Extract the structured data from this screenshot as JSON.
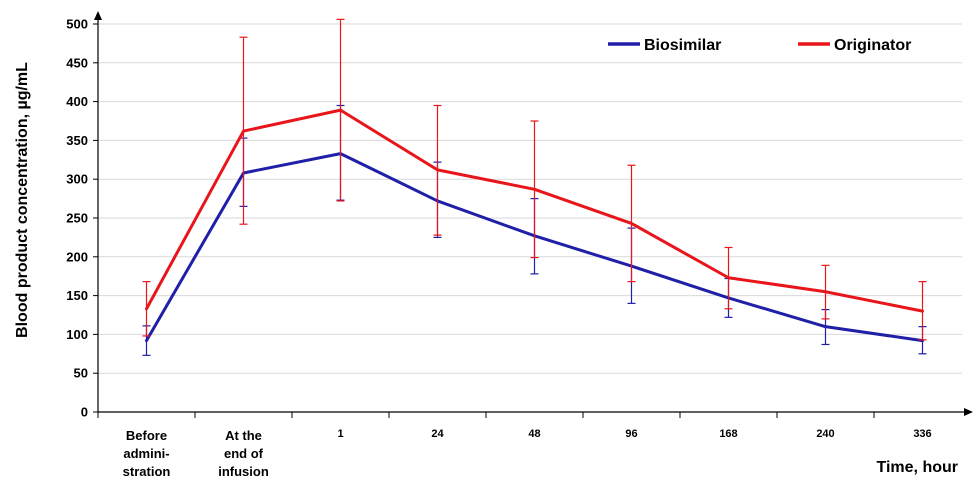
{
  "chart_data": {
    "type": "line",
    "title": "",
    "ylabel": "Blood product concentration, µg/mL",
    "xlabel": "Time, hour",
    "ylim": [
      0,
      500
    ],
    "yticks": [
      0,
      50,
      100,
      150,
      200,
      250,
      300,
      350,
      400,
      450,
      500
    ],
    "grid": true,
    "legend_position": "top-right",
    "categories": [
      [
        "Before",
        "admini-",
        "stration"
      ],
      [
        "At the",
        "end of",
        "infusion"
      ],
      [
        "1"
      ],
      [
        "24"
      ],
      [
        "48"
      ],
      [
        "96"
      ],
      [
        "168"
      ],
      [
        "240"
      ],
      [
        "336"
      ]
    ],
    "series": [
      {
        "name": "Biosimilar",
        "color": "#1f1fa8",
        "values": [
          92,
          308,
          333,
          272,
          227,
          188,
          147,
          110,
          92
        ],
        "err_low": [
          73,
          265,
          273,
          225,
          178,
          140,
          122,
          87,
          75
        ],
        "err_high": [
          111,
          353,
          395,
          322,
          275,
          237,
          172,
          132,
          110
        ]
      },
      {
        "name": "Originator",
        "color": "#e8161b",
        "values": [
          133,
          362,
          389,
          312,
          287,
          243,
          173,
          155,
          130
        ],
        "err_low": [
          98,
          242,
          272,
          228,
          199,
          168,
          133,
          120,
          93
        ],
        "err_high": [
          168,
          483,
          506,
          395,
          375,
          318,
          212,
          189,
          168
        ]
      }
    ]
  }
}
